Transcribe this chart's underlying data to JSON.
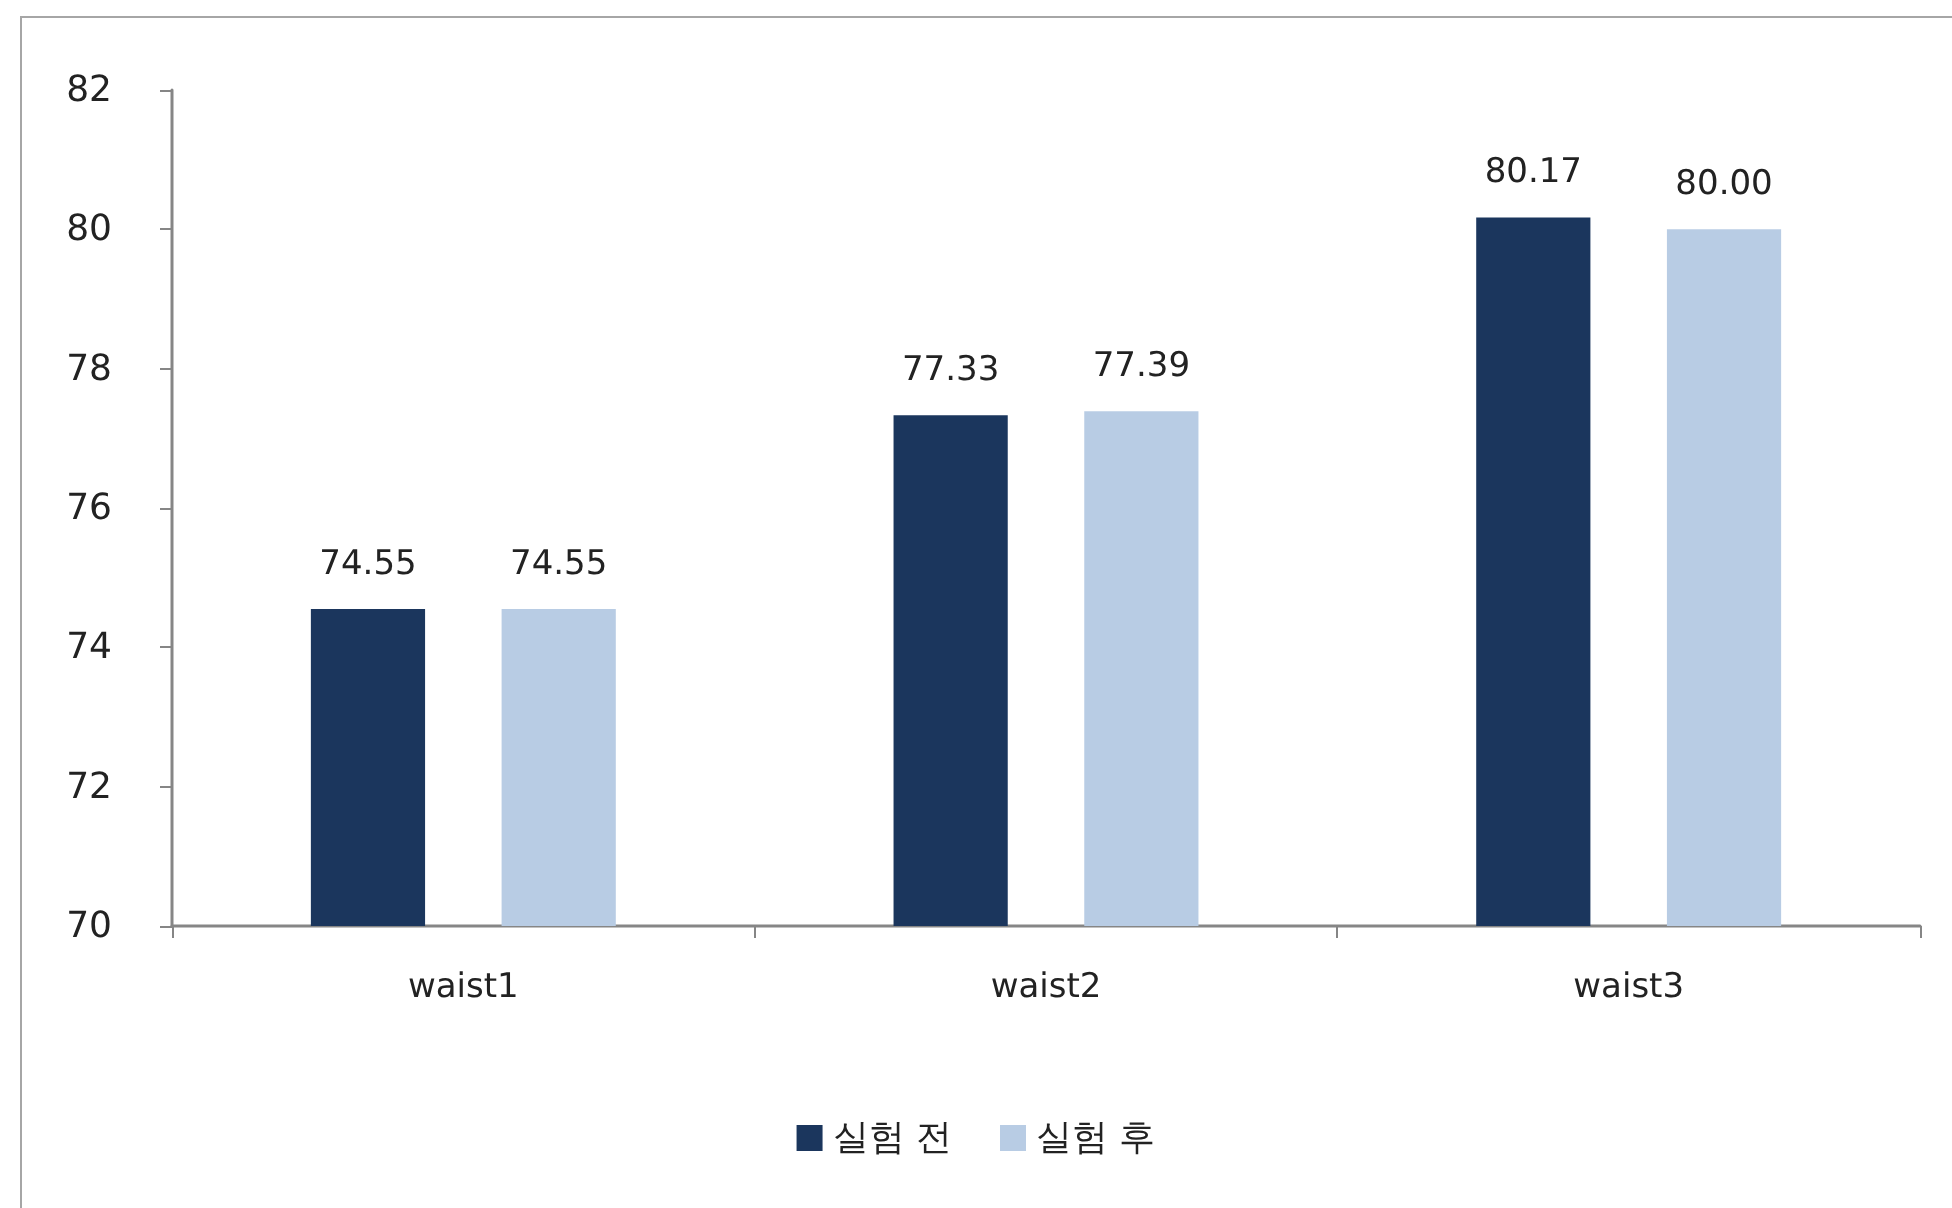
{
  "chart_data": {
    "type": "bar",
    "categories": [
      "waist1",
      "waist2",
      "waist3"
    ],
    "series": [
      {
        "name": "실험 전",
        "color": "#1b365d",
        "values": [
          74.55,
          77.33,
          80.17
        ],
        "value_labels": [
          "74.55",
          "77.33",
          "80.17"
        ]
      },
      {
        "name": "실험 후",
        "color": "#b8cce4",
        "values": [
          74.55,
          77.39,
          80.0
        ],
        "value_labels": [
          "74.55",
          "77.39",
          "80.00"
        ]
      }
    ],
    "ylim": [
      70,
      82
    ],
    "yticks": [
      70,
      72,
      74,
      76,
      78,
      80,
      82
    ],
    "grid": false,
    "legend": "bottom"
  }
}
